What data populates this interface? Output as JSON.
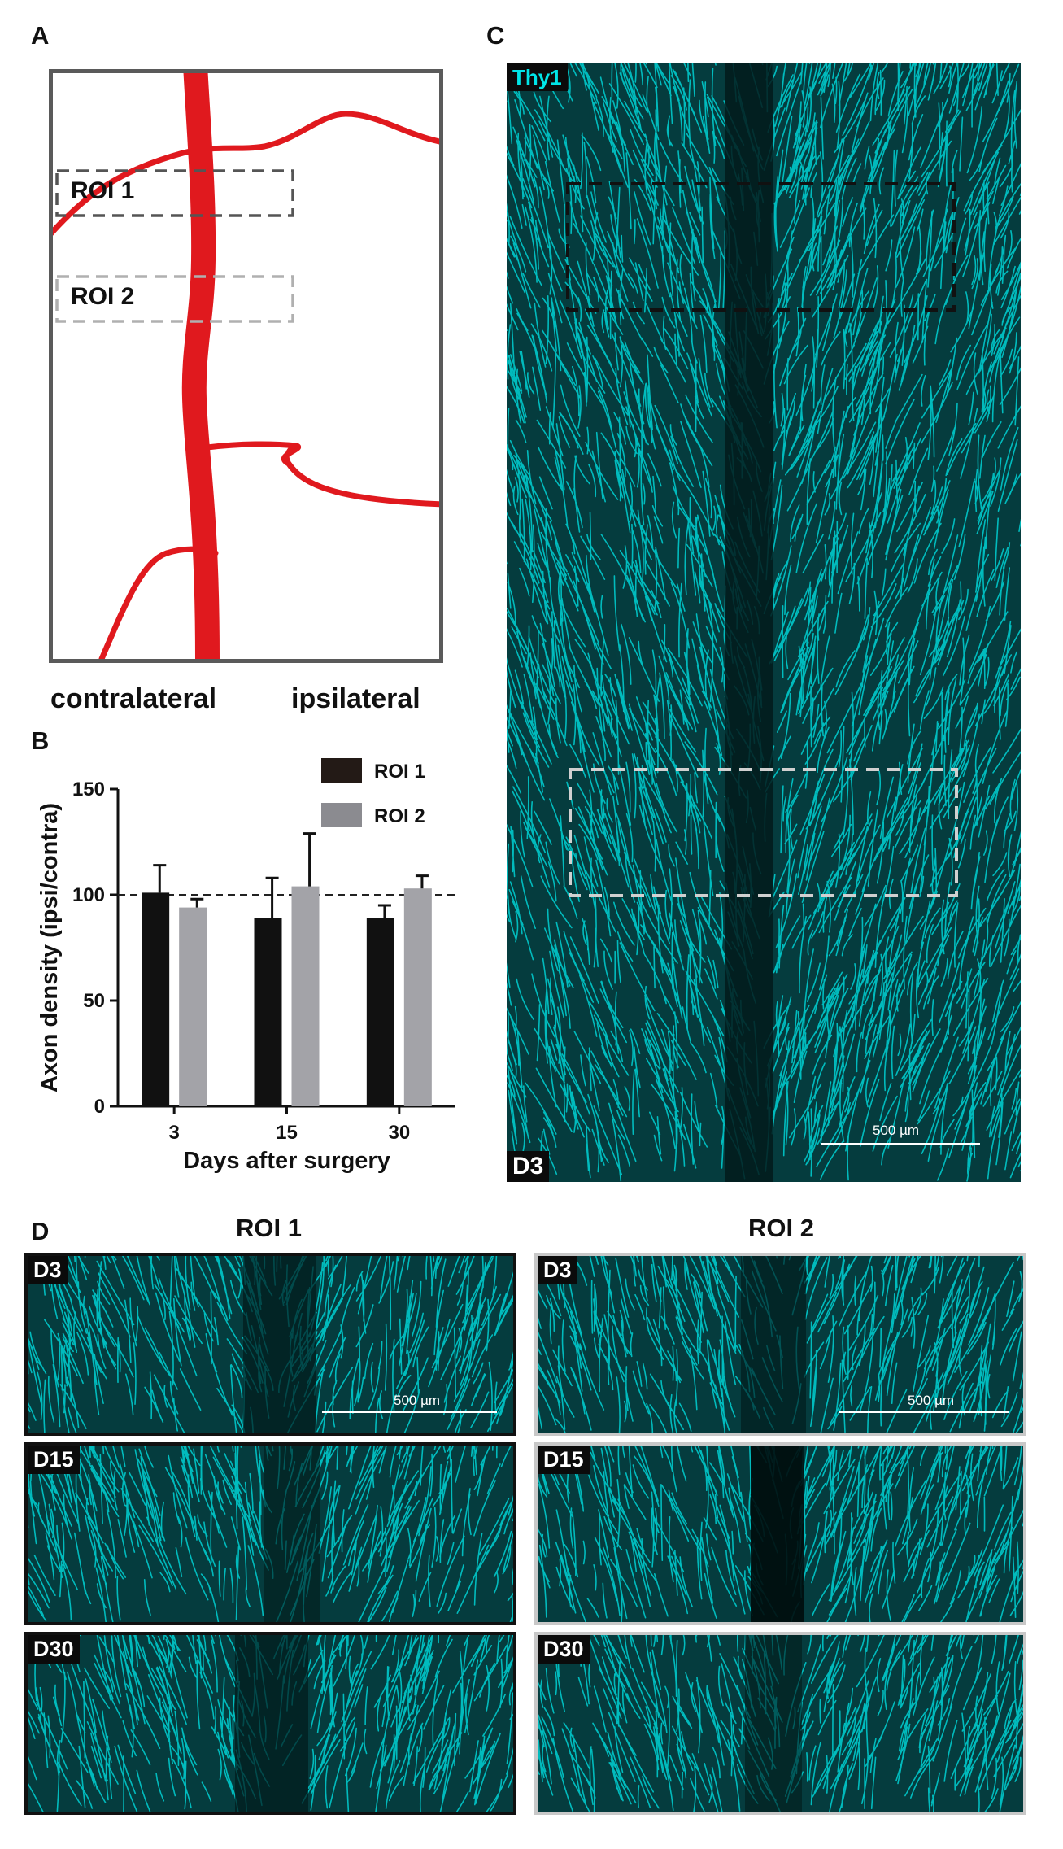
{
  "panels": {
    "a": {
      "letter": "A",
      "roi1_label": "ROI 1",
      "roi2_label": "ROI 2",
      "left_label": "contralateral",
      "right_label": "ipsilateral"
    },
    "b": {
      "letter": "B"
    },
    "c": {
      "letter": "C",
      "stain_label": "Thy1",
      "day_label": "D3",
      "scale_label": "500 µm"
    },
    "d": {
      "letter": "D",
      "col1_title": "ROI 1",
      "col2_title": "ROI 2",
      "scale_label": "500 µm",
      "rows": [
        "D3",
        "D15",
        "D30"
      ]
    }
  },
  "colors": {
    "vessel": "#e0191e",
    "roi1_box": "#555555",
    "roi2_box": "#b0b0b0",
    "fluorescence": "#00e5e8",
    "roi1_bar": "#111111",
    "roi2_bar": "#a3a3a8"
  },
  "chart_data": {
    "type": "bar",
    "title": "",
    "xlabel": "Days after surgery",
    "ylabel": "Axon density (ipsi/contra)",
    "categories": [
      "3",
      "15",
      "30"
    ],
    "ylim": [
      0,
      150
    ],
    "yticks": [
      "0",
      "50",
      "100",
      "150"
    ],
    "reference_line": 100,
    "legend_position": "top-right",
    "series": [
      {
        "name": "ROI 1",
        "values": [
          101,
          89,
          89
        ],
        "errors": [
          13,
          19,
          6
        ]
      },
      {
        "name": "ROI 2",
        "values": [
          94,
          104,
          103
        ],
        "errors": [
          4,
          25,
          6
        ]
      }
    ]
  }
}
